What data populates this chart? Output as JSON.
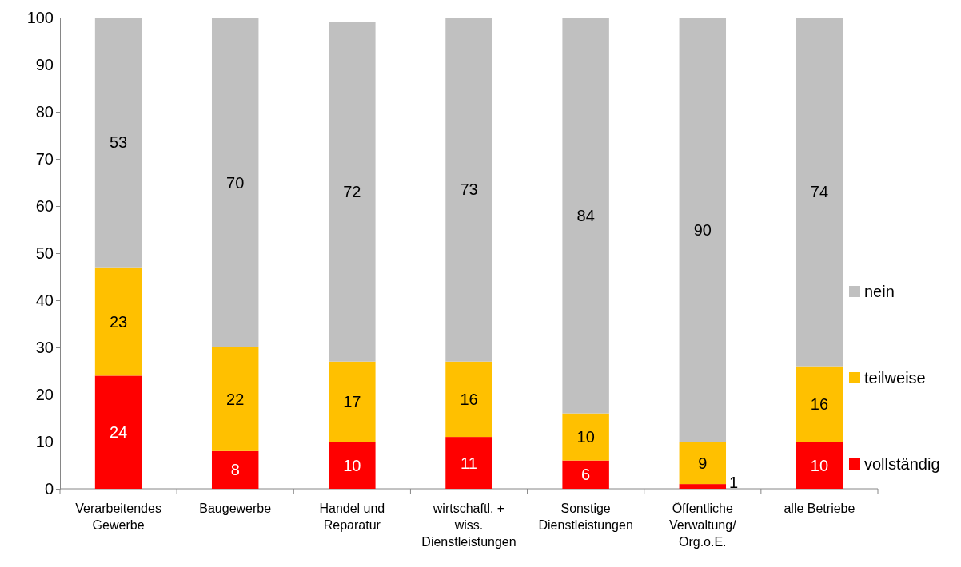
{
  "chart_data": {
    "type": "bar",
    "stacked": true,
    "data_labels": true,
    "legend": "right",
    "grid": false,
    "categories": [
      "Verarbeitendes Gewerbe",
      "Baugewerbe",
      "Handel und Reparatur",
      "wirtschaftl. + wiss. Dienstleistungen",
      "Sonstige Dienstleistungen",
      "Öffentliche Verwaltung/ Org.o.E.",
      "alle Betriebe"
    ],
    "ylim": [
      0,
      100
    ],
    "yticks": [
      0,
      10,
      20,
      30,
      40,
      50,
      60,
      70,
      80,
      90,
      100
    ],
    "series": [
      {
        "name": "vollständig",
        "color": "#ff0000",
        "values": [
          24,
          8,
          10,
          11,
          6,
          1,
          10
        ]
      },
      {
        "name": "teilweise",
        "color": "#ffc000",
        "values": [
          23,
          22,
          17,
          16,
          10,
          9,
          16
        ]
      },
      {
        "name": "nein",
        "color": "#c0c0c0",
        "values": [
          53,
          70,
          72,
          73,
          84,
          90,
          74
        ]
      }
    ]
  }
}
